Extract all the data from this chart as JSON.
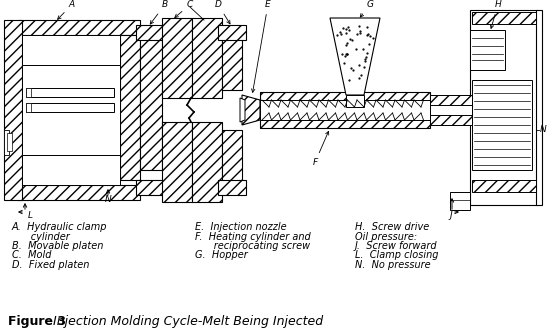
{
  "title_bold": "Figure 3",
  "title_normal": "  Injection Molding Cycle-Melt Being Injected",
  "legend_col1": [
    "A.  Hydraulic clamp",
    "      cylinder",
    "B.  Movable platen",
    "C.  Mold",
    "D.  Fixed platen"
  ],
  "legend_col2": [
    "E.  Injection nozzle",
    "F.  Heating cylinder and",
    "      reciprocating screw",
    "G.  Hopper"
  ],
  "legend_col3": [
    "H.  Screw drive",
    "Oil pressure:",
    "J.  Screw forward",
    "L.  Clamp closing",
    "N.  No pressure"
  ],
  "bg_color": "#ffffff"
}
